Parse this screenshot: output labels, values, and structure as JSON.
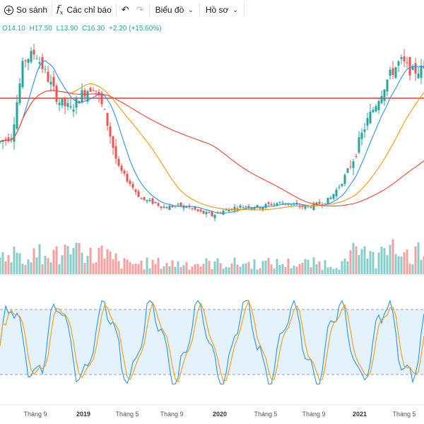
{
  "toolbar": {
    "compare_label": "So sánh",
    "indicators_label": "Các chỉ báo",
    "chart_label": "Biểu đồ",
    "profile_label": "Hồ sơ"
  },
  "ohlc": {
    "open": "O14.10",
    "high": "H17.50",
    "low": "L13.90",
    "close": "C16.30",
    "change": "+2.20 (+15.60%)"
  },
  "colors": {
    "up": "#26a69a",
    "down": "#ef5350",
    "fast_ma": "#2196f3",
    "slow_ma": "#ff9800",
    "long_ma": "#f44336",
    "resistance": "#e53935",
    "stoch_band": "#e3f2fd"
  },
  "x_axis": {
    "labels": [
      "Tháng 9",
      "2019",
      "Tháng 5",
      "Tháng 9",
      "2020",
      "Tháng 5",
      "Tháng 9",
      "2021",
      "Tháng 5"
    ]
  },
  "chart_data": {
    "type": "candlestick",
    "resistance_level": 21.3,
    "price_pattern": [
      15.5,
      16.0,
      20.5,
      21.0,
      19.5,
      18.0,
      17.5,
      18.5,
      19.0,
      17.0,
      14.0,
      13.0,
      12.0,
      11.8,
      11.5,
      11.6,
      11.5,
      11.2,
      11.0,
      11.3,
      11.5,
      11.6,
      11.5,
      11.7,
      11.8,
      11.6,
      11.5,
      11.7,
      12.0,
      13.0,
      14.5,
      16.5,
      18.0,
      19.5,
      20.5,
      19.8,
      20.0
    ],
    "stochastic_band": [
      20,
      80
    ]
  }
}
